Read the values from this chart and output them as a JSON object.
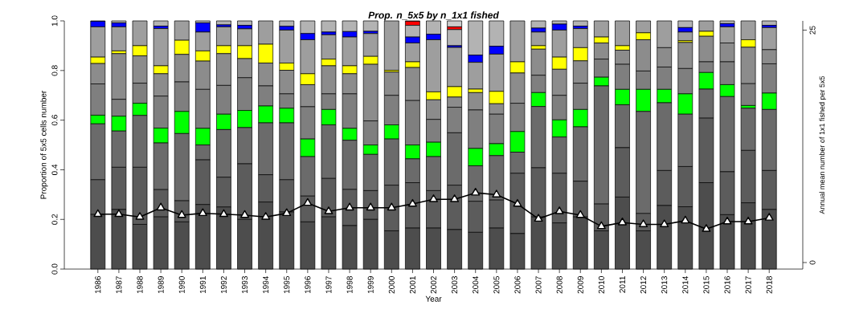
{
  "chart_data": {
    "type": "bar",
    "stacked": true,
    "title": "Prop. n_5x5 by n_1x1 fished",
    "xlabel": "Year",
    "ylabel": "Proportion of 5x5 cells number",
    "y2label": "Annual mean number of 1x1 fished per 5x5",
    "categories": [
      "1986",
      "1987",
      "1988",
      "1989",
      "1990",
      "1991",
      "1992",
      "1993",
      "1994",
      "1995",
      "1996",
      "1997",
      "1998",
      "1999",
      "2000",
      "2001",
      "2002",
      "2003",
      "2004",
      "2005",
      "2006",
      "2007",
      "2008",
      "2009",
      "2010",
      "2011",
      "2012",
      "2013",
      "2014",
      "2015",
      "2016",
      "2017",
      "2018"
    ],
    "ylim": [
      0,
      1
    ],
    "yticks": [
      {
        "value": 0,
        "label": "0.0"
      },
      0.2,
      0.4,
      0.6,
      0.8,
      {
        "value": 1,
        "label": "1.0"
      }
    ],
    "y2lim": [
      -0.7,
      26
    ],
    "y2ticks": [
      0,
      25
    ],
    "series": [
      {
        "color": "#4d4d4d",
        "values": [
          0.22,
          0.24,
          0.18,
          0.21,
          0.19,
          0.26,
          0.25,
          0.2,
          0.27,
          0.23,
          0.19,
          0.21,
          0.175,
          0.2,
          0.154,
          0.165,
          0.165,
          0.159,
          0.148,
          0.165,
          0.143,
          0.21,
          0.186,
          0.21,
          0.154,
          0.29,
          0.154,
          0.256,
          0.251,
          0.348,
          0.219,
          0.267,
          0.24
        ]
      },
      {
        "color": "#5c5c5c",
        "values": [
          0.14,
          0.17,
          0.23,
          0.11,
          0.085,
          0.18,
          0.12,
          0.224,
          0.11,
          0.13,
          0.104,
          0.155,
          0.146,
          0.116,
          0.184,
          0.183,
          0.151,
          0.179,
          0.125,
          0.113,
          0.243,
          0.198,
          0.2,
          0.144,
          0.108,
          0.199,
          0.07,
          0.141,
          0.162,
          0.26,
          0.173,
          0.211,
          0.157
        ]
      },
      {
        "color": "#6b6b6b",
        "values": [
          0.225,
          0.146,
          0.209,
          0.188,
          0.271,
          0.06,
          0.192,
          0.146,
          0.209,
          0.229,
          0.159,
          0.216,
          0.198,
          0.146,
          0.186,
          0.096,
          0.137,
          0.211,
          0.143,
          0.179,
          0.085,
          0.247,
          0.146,
          0.219,
          0.476,
          0.173,
          0.411,
          0.273,
          0.211,
          0.117,
          0.303,
          0.17,
          0.246
        ]
      },
      {
        "color": "#00ff00",
        "values": [
          0.035,
          0.06,
          0.049,
          0.06,
          0.089,
          0.067,
          0.062,
          0.069,
          0.068,
          0.059,
          0.071,
          0.062,
          0.048,
          0.038,
          0.057,
          0.056,
          0.058,
          0,
          0.07,
          0.048,
          0.083,
          0.056,
          0.069,
          0.07,
          0.035,
          0.062,
          0.089,
          0.054,
          0.082,
          0.067,
          0.048,
          0.011,
          0.066
        ]
      },
      {
        "color": "#7f7f7f",
        "values": [
          0.126,
          0.068,
          0.081,
          0.129,
          0.119,
          0.157,
          0.116,
          0.132,
          0.081,
          0.058,
          0.13,
          0.063,
          0.139,
          0.097,
          0.119,
          0.179,
          0.092,
          0.103,
          0.155,
          0.119,
          0.114,
          0.07,
          0.099,
          0.106,
          0.073,
          0.101,
          0.074,
          0.09,
          0.102,
          0.043,
          0.092,
          0.088,
          0.118
        ]
      },
      {
        "color": "#8c8c8c",
        "values": [
          0.082,
          0.184,
          0.11,
          0.09,
          0.111,
          0.114,
          0.128,
          0.077,
          0.092,
          0.095,
          0.089,
          0.113,
          0.081,
          0.228,
          0.094,
          0.133,
          0.079,
          0.041,
          0.07,
          0.042,
          0.122,
          0.105,
          0.105,
          0.09,
          0.065,
          0.057,
          0.126,
          0.078,
          0.105,
          0.103,
          0.076,
          0.147,
          0.057
        ]
      },
      {
        "color": "#ffff00",
        "values": [
          0.026,
          0.011,
          0.041,
          0.032,
          0.057,
          0.041,
          0.032,
          0.052,
          0.076,
          0.029,
          0.044,
          0.027,
          0.032,
          0.032,
          0.007,
          0.023,
          0.032,
          0.042,
          0.014,
          0.05,
          0.045,
          0.014,
          0.049,
          0.053,
          0.024,
          0.018,
          0.028,
          0,
          0.007,
          0.02,
          0,
          0.03,
          0
        ]
      },
      {
        "color": "#9e9e9e",
        "values": [
          0.122,
          0.097,
          0.1,
          0.15,
          0.078,
          0.076,
          0.076,
          0.068,
          0.094,
          0.133,
          0.137,
          0.098,
          0.116,
          0.092,
          0.199,
          0.076,
          0.21,
          0.158,
          0.108,
          0.15,
          0.165,
          0.055,
          0.109,
          0.077,
          0.065,
          0.1,
          0.048,
          0.108,
          0.035,
          0.042,
          0.065,
          0.076,
          0.089
        ]
      },
      {
        "color": "#0000ff",
        "values": [
          0.022,
          0.016,
          0,
          0.01,
          0,
          0.037,
          0.008,
          0.014,
          0,
          0.015,
          0.025,
          0.011,
          0.022,
          0.009,
          0,
          0.024,
          0.022,
          0.007,
          0.029,
          0.032,
          0,
          0.016,
          0.024,
          0.01,
          0,
          0,
          0,
          0,
          0.018,
          0,
          0.013,
          0,
          0.009
        ]
      },
      {
        "color": "#b3b3b3",
        "values": [
          0.002,
          0.008,
          0,
          0.021,
          0,
          0.008,
          0.016,
          0.018,
          0,
          0.022,
          0.051,
          0.045,
          0.043,
          0.042,
          0,
          0.047,
          0.054,
          0.065,
          0.138,
          0.102,
          0,
          0.029,
          0.013,
          0.021,
          0,
          0,
          0,
          0,
          0.027,
          0,
          0.011,
          0,
          0.018
        ]
      },
      {
        "color": "#ff0000",
        "values": [
          0,
          0,
          0,
          0,
          0,
          0,
          0,
          0,
          0,
          0,
          0,
          0,
          0,
          0,
          0,
          0.016,
          0,
          0.011,
          0,
          0,
          0,
          0,
          0,
          0,
          0,
          0,
          0,
          0,
          0,
          0,
          0,
          0,
          0
        ]
      },
      {
        "color": "#cccccc",
        "values": [
          0,
          0,
          0,
          0,
          0,
          0,
          0,
          0,
          0,
          0,
          0,
          0,
          0,
          0,
          0,
          0.002,
          0,
          0.024,
          0,
          0,
          0,
          0,
          0,
          0,
          0,
          0,
          0,
          0,
          0,
          0,
          0,
          0,
          0
        ]
      },
      {
        "type": "line",
        "axis": "y2",
        "color": "#000000",
        "marker": "triangle",
        "values": [
          5.2,
          5.2,
          4.9,
          5.9,
          5.1,
          5.3,
          5.2,
          5.1,
          4.9,
          5.3,
          6.4,
          5.5,
          5.9,
          5.9,
          5.9,
          6.3,
          6.8,
          6.8,
          7.5,
          7.3,
          6.3,
          4.7,
          5.5,
          5.1,
          3.9,
          4.3,
          4.1,
          4.1,
          4.5,
          3.6,
          4.4,
          4.4,
          4.8
        ]
      }
    ]
  }
}
